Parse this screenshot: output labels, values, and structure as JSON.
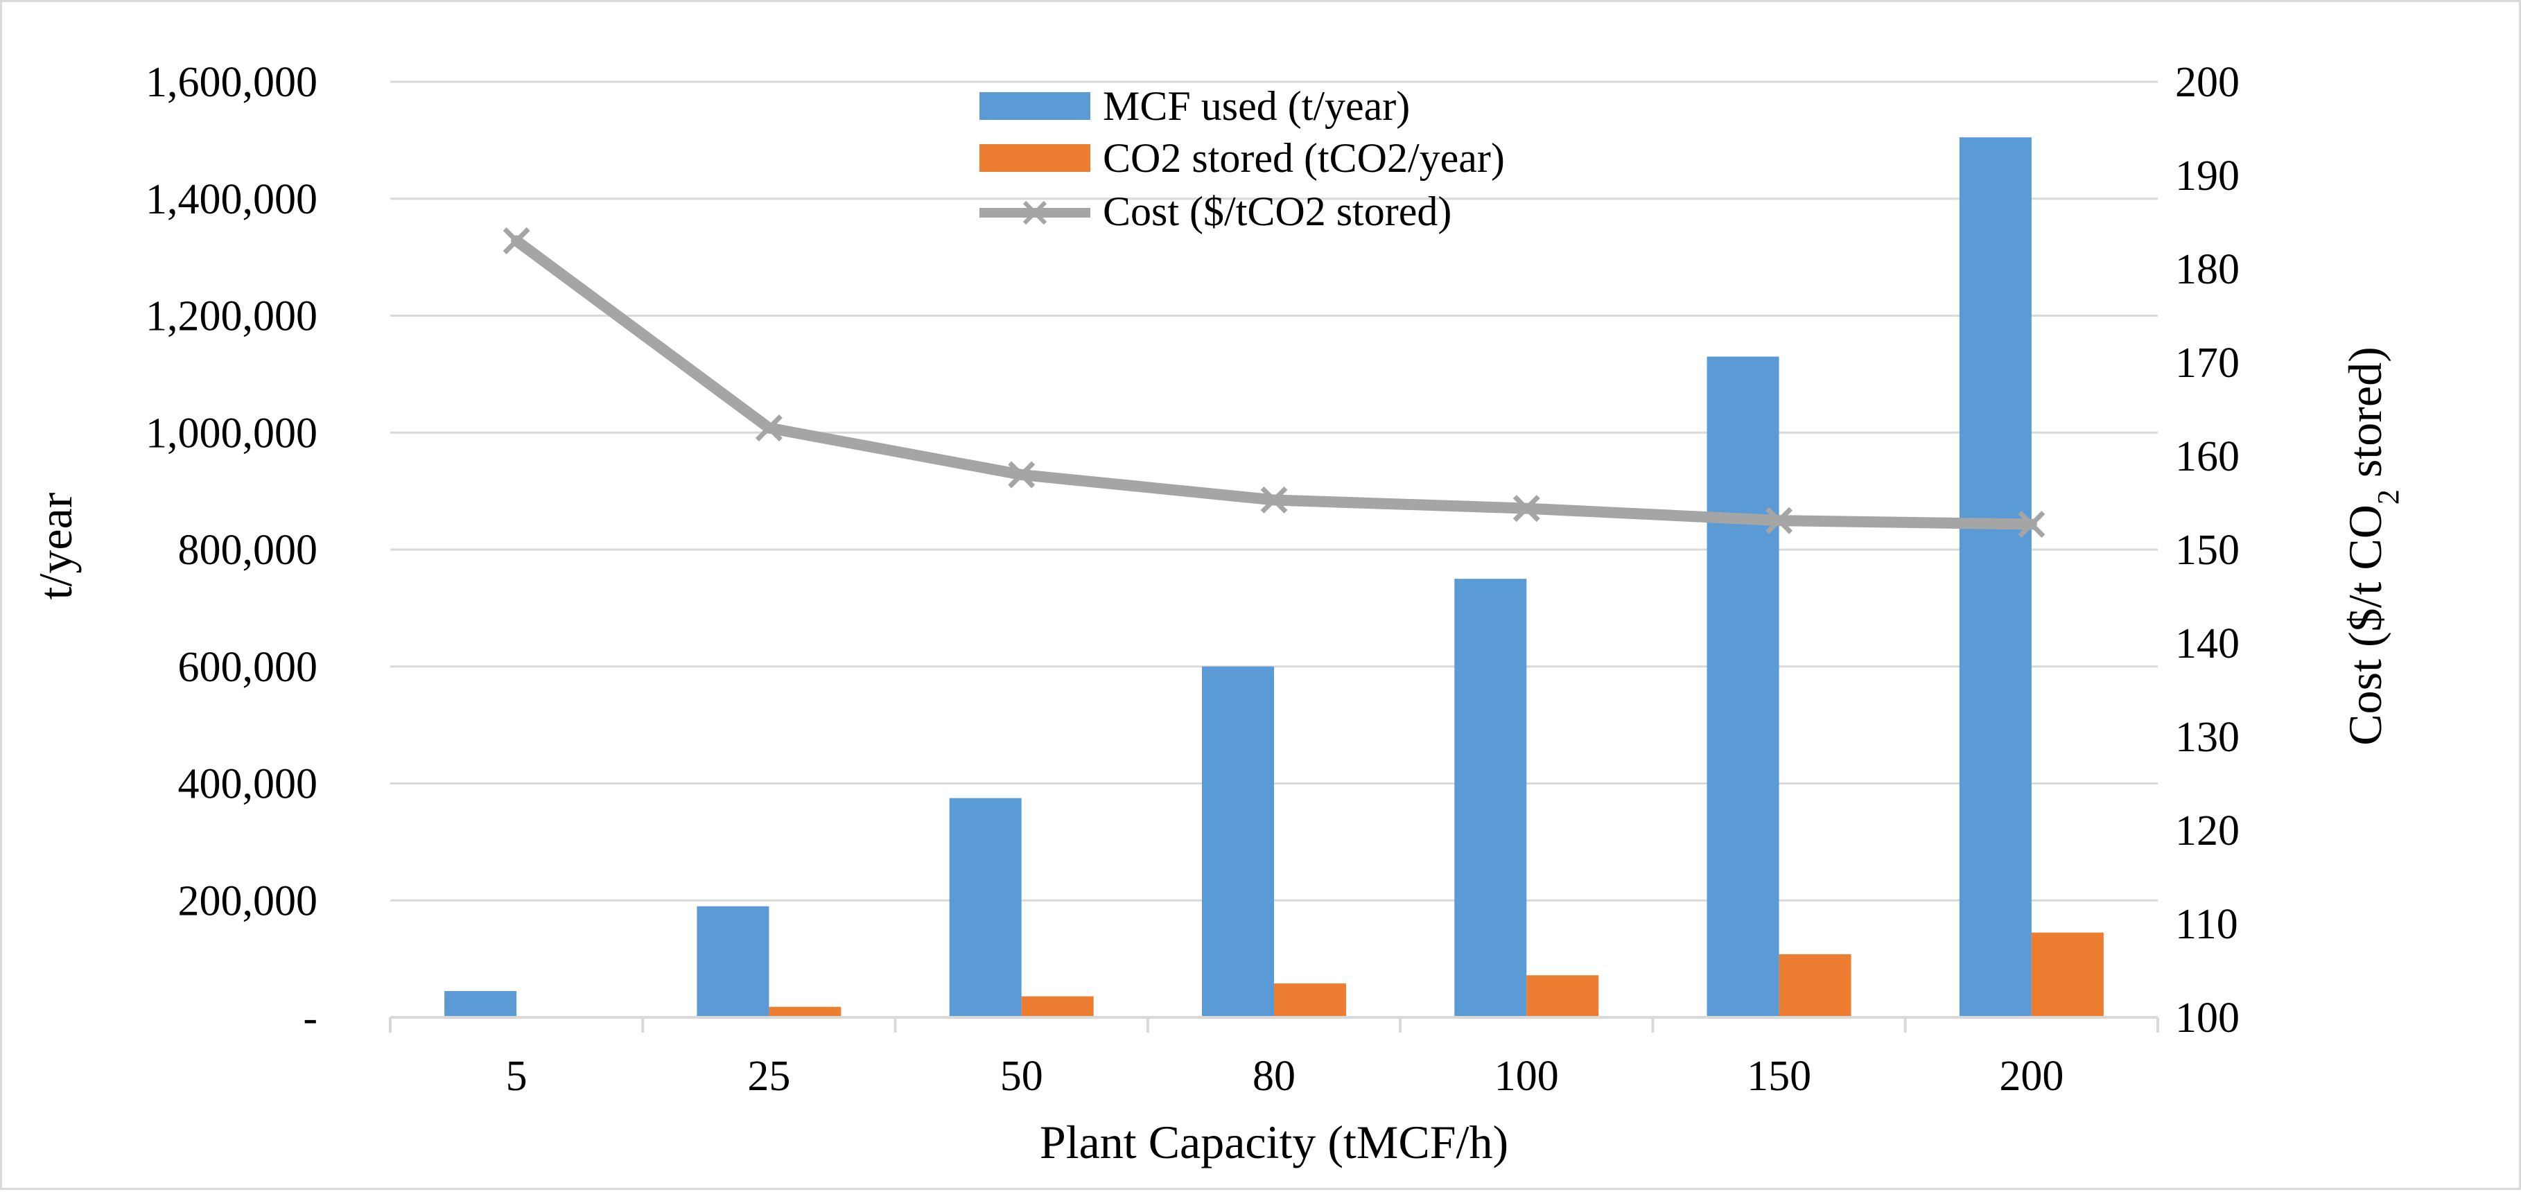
{
  "chart_data": {
    "type": "bar",
    "title": "",
    "categories": [
      "5",
      "25",
      "50",
      "80",
      "100",
      "150",
      "200"
    ],
    "series": [
      {
        "name": "MCF used (t/year)",
        "type": "bar",
        "axis": "left",
        "color": "#5b9bd5",
        "values": [
          45000,
          190000,
          375000,
          600000,
          750000,
          1130000,
          1505000
        ]
      },
      {
        "name": "CO2 stored (tCO2/year)",
        "type": "bar",
        "axis": "left",
        "color": "#ed7d31",
        "values": [
          0,
          18000,
          36000,
          58000,
          72000,
          108000,
          145000
        ]
      },
      {
        "name": "Cost ($/tCO2 stored)",
        "type": "line",
        "axis": "right",
        "color": "#a5a5a5",
        "values": [
          183,
          163,
          158,
          155.3,
          154.4,
          153.1,
          152.7
        ]
      }
    ],
    "xlabel": "Plant Capacity (tMCF/h)",
    "ylabel": "t/year",
    "y2label": {
      "before": "Cost ($/t CO",
      "subscript": "2",
      "after": " stored)"
    },
    "ylim": [
      0,
      1600000
    ],
    "y2lim": [
      100,
      200
    ],
    "yticks": [
      0,
      200000,
      400000,
      600000,
      800000,
      1000000,
      1200000,
      1400000,
      1600000
    ],
    "yticklabels": [
      "-",
      "200,000",
      "400,000",
      "600,000",
      "800,000",
      "1,000,000",
      "1,200,000",
      "1,400,000",
      "1,600,000"
    ],
    "y2ticks": [
      100,
      110,
      120,
      130,
      140,
      150,
      160,
      170,
      180,
      190,
      200
    ],
    "y2ticklabels": [
      "100",
      "110",
      "120",
      "130",
      "140",
      "150",
      "160",
      "170",
      "180",
      "190",
      "200"
    ],
    "grid": true,
    "legend_position": "top-center"
  }
}
